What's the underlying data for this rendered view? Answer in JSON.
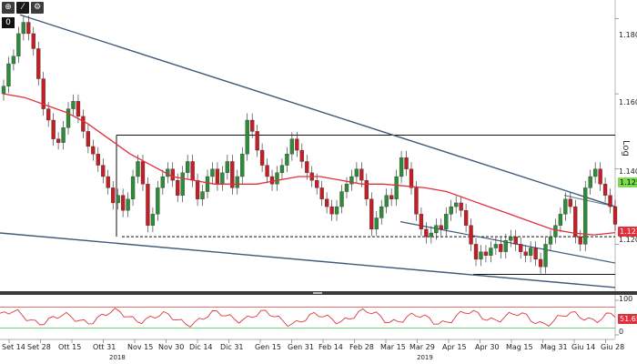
{
  "toolbar": {
    "buttons": [
      {
        "label": "⊕",
        "icon": "crosshair-icon"
      },
      {
        "label": "⁄",
        "icon": "pen-icon",
        "active": true
      },
      {
        "label": "⚙",
        "icon": "gear-icon"
      }
    ],
    "zero_label": "0"
  },
  "axis_scale_label": "Log",
  "colors": {
    "up": "#2e8b3a",
    "down": "#c21f27",
    "ma": "#e0303c",
    "trendline": "#3d5a78",
    "channel": "#111111",
    "rsi_line": "#d83a40",
    "rsi_green": "#44c455",
    "rsi_red": "#e04444",
    "price_tag_green": "#7ddc4c",
    "price_tag_red": "#e0303c"
  },
  "price_tags": {
    "last": "1.1253",
    "ma": "1.1231",
    "lower": "1.1200",
    "rsi": "51.6546"
  },
  "chart_data": {
    "type": "candlestick",
    "title": "",
    "scale": "log",
    "y_ticks": [
      "1.1800",
      "1.1600",
      "1.1400",
      "1.1200"
    ],
    "rsi_ticks": [
      "100",
      "0"
    ],
    "x_tick_labels": [
      "Set 14",
      "Set 28",
      "Ott 15",
      "Ott 31",
      "Nov 15",
      "Nov 30",
      "Dic 14",
      "Dic 31",
      "Gen 15",
      "Gen 31",
      "Feb 14",
      "Feb 28",
      "Mar 15",
      "Mar 29",
      "Apr 15",
      "Apr 30",
      "Mag 15",
      "Mag 31",
      "Giu 14",
      "Giu 28"
    ],
    "year_labels": [
      "2018",
      "2019"
    ],
    "ylim": [
      1.108,
      1.183
    ],
    "closes": [
      1.162,
      1.168,
      1.17,
      1.176,
      1.179,
      1.176,
      1.172,
      1.164,
      1.156,
      1.153,
      1.148,
      1.147,
      1.151,
      1.156,
      1.158,
      1.154,
      1.15,
      1.146,
      1.144,
      1.141,
      1.138,
      1.135,
      1.131,
      1.133,
      1.129,
      1.132,
      1.138,
      1.142,
      1.136,
      1.125,
      1.128,
      1.135,
      1.138,
      1.14,
      1.137,
      1.133,
      1.139,
      1.142,
      1.137,
      1.132,
      1.134,
      1.138,
      1.14,
      1.136,
      1.139,
      1.142,
      1.135,
      1.138,
      1.144,
      1.153,
      1.15,
      1.145,
      1.141,
      1.138,
      1.136,
      1.139,
      1.141,
      1.144,
      1.148,
      1.145,
      1.142,
      1.139,
      1.137,
      1.135,
      1.132,
      1.13,
      1.128,
      1.13,
      1.134,
      1.136,
      1.138,
      1.14,
      1.137,
      1.132,
      1.124,
      1.127,
      1.13,
      1.133,
      1.132,
      1.138,
      1.143,
      1.14,
      1.135,
      1.128,
      1.124,
      1.122,
      1.123,
      1.125,
      1.124,
      1.128,
      1.13,
      1.131,
      1.129,
      1.125,
      1.12,
      1.116,
      1.118,
      1.117,
      1.119,
      1.12,
      1.118,
      1.121,
      1.122,
      1.12,
      1.118,
      1.117,
      1.119,
      1.116,
      1.114,
      1.12,
      1.122,
      1.125,
      1.128,
      1.132,
      1.13,
      1.122,
      1.12,
      1.135,
      1.138,
      1.14,
      1.136,
      1.133,
      1.13,
      1.1253
    ],
    "ma_values": [
      1.16,
      1.159,
      1.157,
      1.155,
      1.152,
      1.148,
      1.144,
      1.141,
      1.138,
      1.137,
      1.136,
      1.136,
      1.136,
      1.137,
      1.138,
      1.138,
      1.137,
      1.136,
      1.136,
      1.1355,
      1.135,
      1.134,
      1.132,
      1.13,
      1.128,
      1.126,
      1.124,
      1.123,
      1.1225,
      1.1231
    ],
    "trendlines": [
      {
        "name": "",
        "from": [
          "Set 21",
          1.181
        ],
        "to": [
          "Giu 28",
          1.13
        ]
      },
      {
        "name": "",
        "from": [
          "Set 14",
          1.123
        ],
        "to": [
          "Giu 28",
          1.1085
        ]
      }
    ],
    "channel": {
      "top": 1.149,
      "bottom_dashed": 1.122,
      "support": 1.112
    },
    "rsi_value": 51.6546
  }
}
